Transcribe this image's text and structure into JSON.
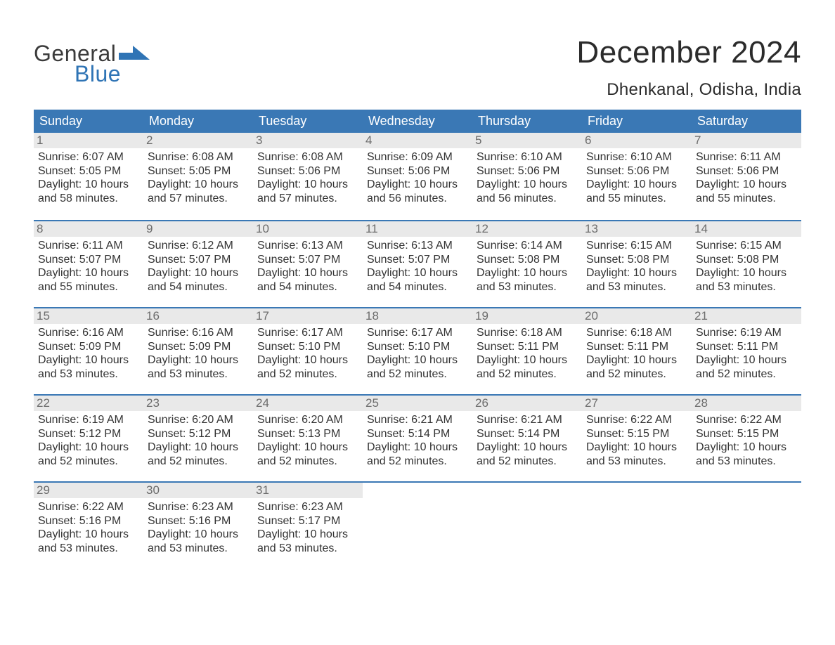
{
  "logo": {
    "word1": "General",
    "word2": "Blue"
  },
  "title": "December 2024",
  "location": "Dhenkanal, Odisha, India",
  "colors": {
    "header_bg": "#3a78b5",
    "header_text": "#ffffff",
    "daynum_bg": "#e9e9e9",
    "daynum_text": "#6c6c6c",
    "body_text": "#333333",
    "logo_blue": "#2f74b5",
    "week_border": "#3a78b5"
  },
  "day_names": [
    "Sunday",
    "Monday",
    "Tuesday",
    "Wednesday",
    "Thursday",
    "Friday",
    "Saturday"
  ],
  "weeks": [
    [
      {
        "n": "1",
        "sunrise": "6:07 AM",
        "sunset": "5:05 PM",
        "dl1": "10 hours",
        "dl2": "and 58 minutes."
      },
      {
        "n": "2",
        "sunrise": "6:08 AM",
        "sunset": "5:05 PM",
        "dl1": "10 hours",
        "dl2": "and 57 minutes."
      },
      {
        "n": "3",
        "sunrise": "6:08 AM",
        "sunset": "5:06 PM",
        "dl1": "10 hours",
        "dl2": "and 57 minutes."
      },
      {
        "n": "4",
        "sunrise": "6:09 AM",
        "sunset": "5:06 PM",
        "dl1": "10 hours",
        "dl2": "and 56 minutes."
      },
      {
        "n": "5",
        "sunrise": "6:10 AM",
        "sunset": "5:06 PM",
        "dl1": "10 hours",
        "dl2": "and 56 minutes."
      },
      {
        "n": "6",
        "sunrise": "6:10 AM",
        "sunset": "5:06 PM",
        "dl1": "10 hours",
        "dl2": "and 55 minutes."
      },
      {
        "n": "7",
        "sunrise": "6:11 AM",
        "sunset": "5:06 PM",
        "dl1": "10 hours",
        "dl2": "and 55 minutes."
      }
    ],
    [
      {
        "n": "8",
        "sunrise": "6:11 AM",
        "sunset": "5:07 PM",
        "dl1": "10 hours",
        "dl2": "and 55 minutes."
      },
      {
        "n": "9",
        "sunrise": "6:12 AM",
        "sunset": "5:07 PM",
        "dl1": "10 hours",
        "dl2": "and 54 minutes."
      },
      {
        "n": "10",
        "sunrise": "6:13 AM",
        "sunset": "5:07 PM",
        "dl1": "10 hours",
        "dl2": "and 54 minutes."
      },
      {
        "n": "11",
        "sunrise": "6:13 AM",
        "sunset": "5:07 PM",
        "dl1": "10 hours",
        "dl2": "and 54 minutes."
      },
      {
        "n": "12",
        "sunrise": "6:14 AM",
        "sunset": "5:08 PM",
        "dl1": "10 hours",
        "dl2": "and 53 minutes."
      },
      {
        "n": "13",
        "sunrise": "6:15 AM",
        "sunset": "5:08 PM",
        "dl1": "10 hours",
        "dl2": "and 53 minutes."
      },
      {
        "n": "14",
        "sunrise": "6:15 AM",
        "sunset": "5:08 PM",
        "dl1": "10 hours",
        "dl2": "and 53 minutes."
      }
    ],
    [
      {
        "n": "15",
        "sunrise": "6:16 AM",
        "sunset": "5:09 PM",
        "dl1": "10 hours",
        "dl2": "and 53 minutes."
      },
      {
        "n": "16",
        "sunrise": "6:16 AM",
        "sunset": "5:09 PM",
        "dl1": "10 hours",
        "dl2": "and 53 minutes."
      },
      {
        "n": "17",
        "sunrise": "6:17 AM",
        "sunset": "5:10 PM",
        "dl1": "10 hours",
        "dl2": "and 52 minutes."
      },
      {
        "n": "18",
        "sunrise": "6:17 AM",
        "sunset": "5:10 PM",
        "dl1": "10 hours",
        "dl2": "and 52 minutes."
      },
      {
        "n": "19",
        "sunrise": "6:18 AM",
        "sunset": "5:11 PM",
        "dl1": "10 hours",
        "dl2": "and 52 minutes."
      },
      {
        "n": "20",
        "sunrise": "6:18 AM",
        "sunset": "5:11 PM",
        "dl1": "10 hours",
        "dl2": "and 52 minutes."
      },
      {
        "n": "21",
        "sunrise": "6:19 AM",
        "sunset": "5:11 PM",
        "dl1": "10 hours",
        "dl2": "and 52 minutes."
      }
    ],
    [
      {
        "n": "22",
        "sunrise": "6:19 AM",
        "sunset": "5:12 PM",
        "dl1": "10 hours",
        "dl2": "and 52 minutes."
      },
      {
        "n": "23",
        "sunrise": "6:20 AM",
        "sunset": "5:12 PM",
        "dl1": "10 hours",
        "dl2": "and 52 minutes."
      },
      {
        "n": "24",
        "sunrise": "6:20 AM",
        "sunset": "5:13 PM",
        "dl1": "10 hours",
        "dl2": "and 52 minutes."
      },
      {
        "n": "25",
        "sunrise": "6:21 AM",
        "sunset": "5:14 PM",
        "dl1": "10 hours",
        "dl2": "and 52 minutes."
      },
      {
        "n": "26",
        "sunrise": "6:21 AM",
        "sunset": "5:14 PM",
        "dl1": "10 hours",
        "dl2": "and 52 minutes."
      },
      {
        "n": "27",
        "sunrise": "6:22 AM",
        "sunset": "5:15 PM",
        "dl1": "10 hours",
        "dl2": "and 53 minutes."
      },
      {
        "n": "28",
        "sunrise": "6:22 AM",
        "sunset": "5:15 PM",
        "dl1": "10 hours",
        "dl2": "and 53 minutes."
      }
    ],
    [
      {
        "n": "29",
        "sunrise": "6:22 AM",
        "sunset": "5:16 PM",
        "dl1": "10 hours",
        "dl2": "and 53 minutes."
      },
      {
        "n": "30",
        "sunrise": "6:23 AM",
        "sunset": "5:16 PM",
        "dl1": "10 hours",
        "dl2": "and 53 minutes."
      },
      {
        "n": "31",
        "sunrise": "6:23 AM",
        "sunset": "5:17 PM",
        "dl1": "10 hours",
        "dl2": "and 53 minutes."
      },
      null,
      null,
      null,
      null
    ]
  ],
  "labels": {
    "sunrise": "Sunrise: ",
    "sunset": "Sunset: ",
    "daylight": "Daylight: "
  }
}
